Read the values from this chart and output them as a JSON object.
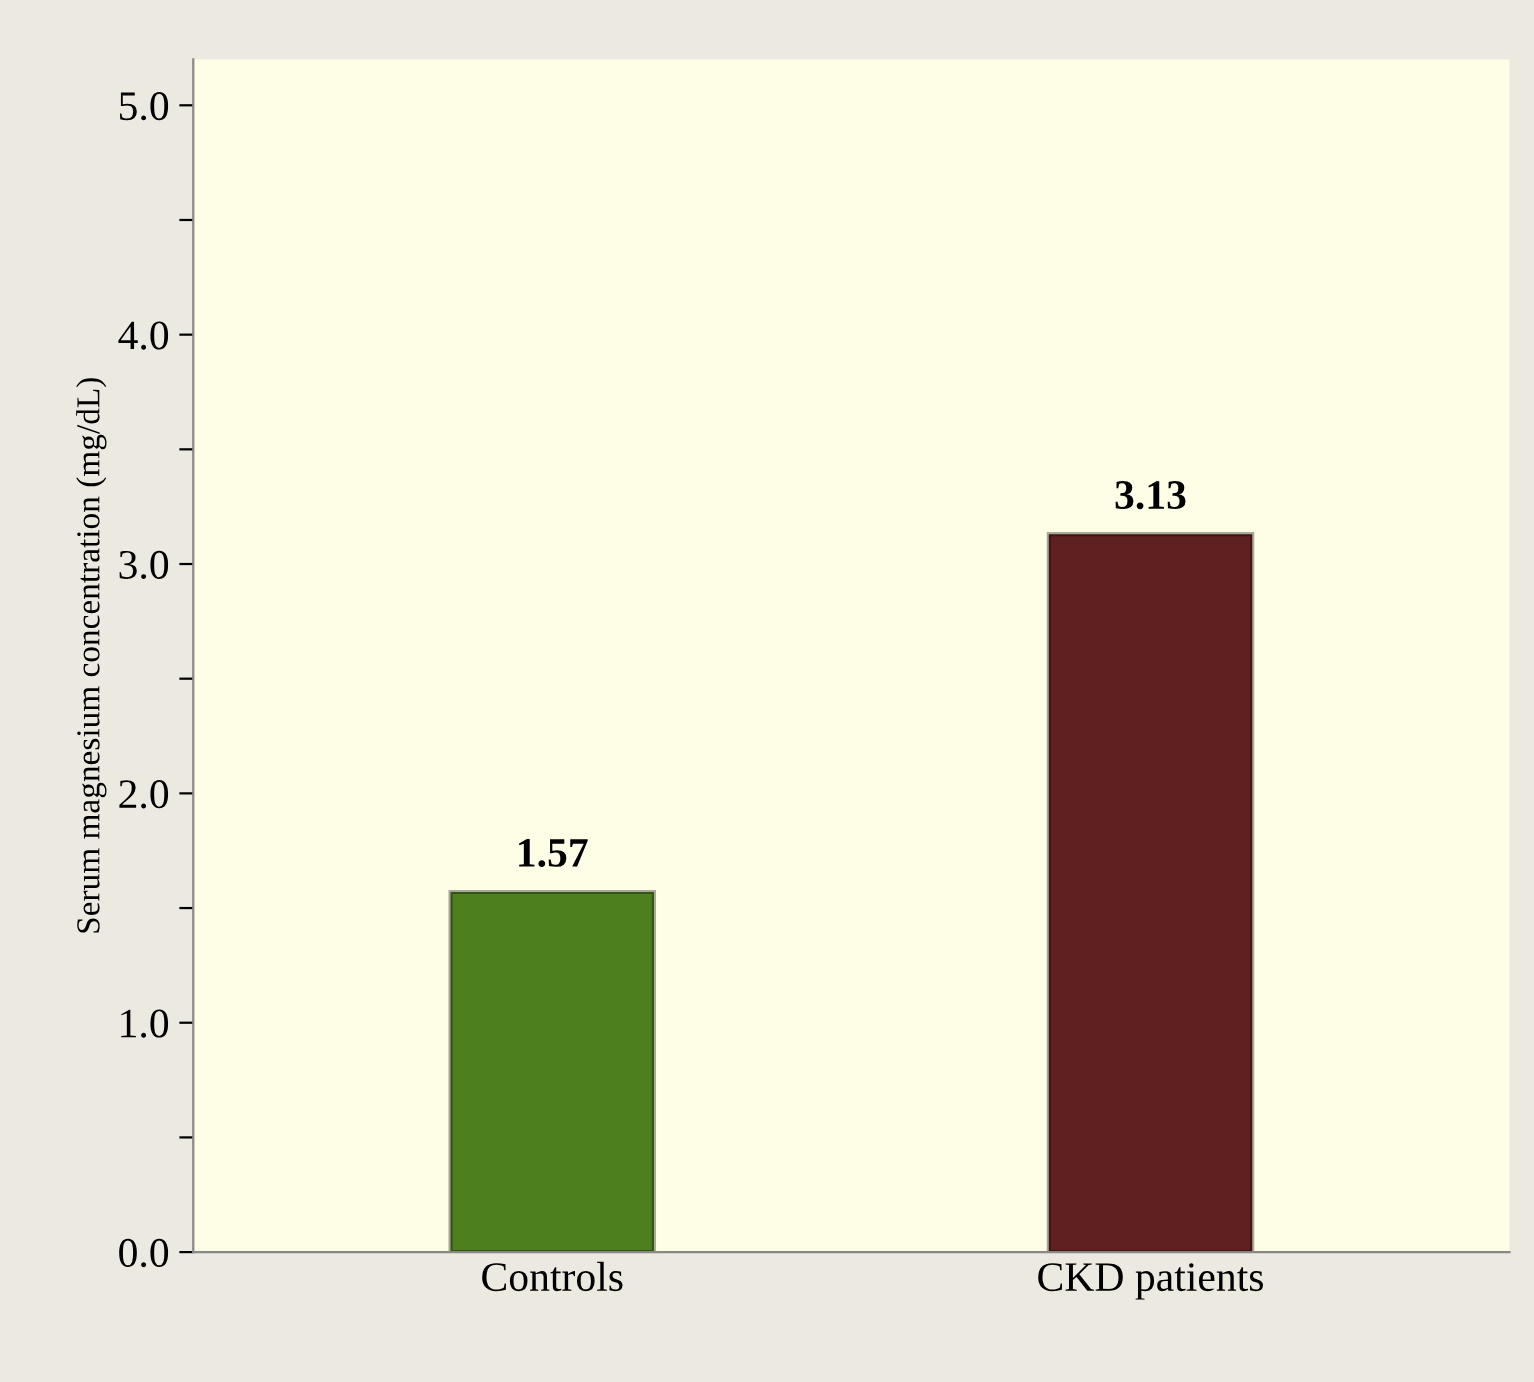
{
  "chart_data": {
    "type": "bar",
    "ylabel": "Serum magnesium concentration (mg/dL)",
    "categories": [
      "Controls",
      "CKD patients"
    ],
    "values": [
      1.57,
      3.13
    ],
    "colors": [
      "#4e7f1e",
      "#5e2020"
    ],
    "data_labels": true,
    "ylim": [
      0,
      5.2
    ],
    "yticks": [
      {
        "value": 0,
        "label": "0.0"
      },
      {
        "value": 0.5,
        "label": null
      },
      {
        "value": 1,
        "label": "1.0"
      },
      {
        "value": 1.5,
        "label": null
      },
      {
        "value": 2,
        "label": "2.0"
      },
      {
        "value": 2.5,
        "label": null
      },
      {
        "value": 3,
        "label": "3.0"
      },
      {
        "value": 3.5,
        "label": null
      },
      {
        "value": 4,
        "label": "4.0"
      },
      {
        "value": 4.5,
        "label": null
      },
      {
        "value": 5,
        "label": "5.0"
      }
    ],
    "grid": false,
    "legend": false
  }
}
